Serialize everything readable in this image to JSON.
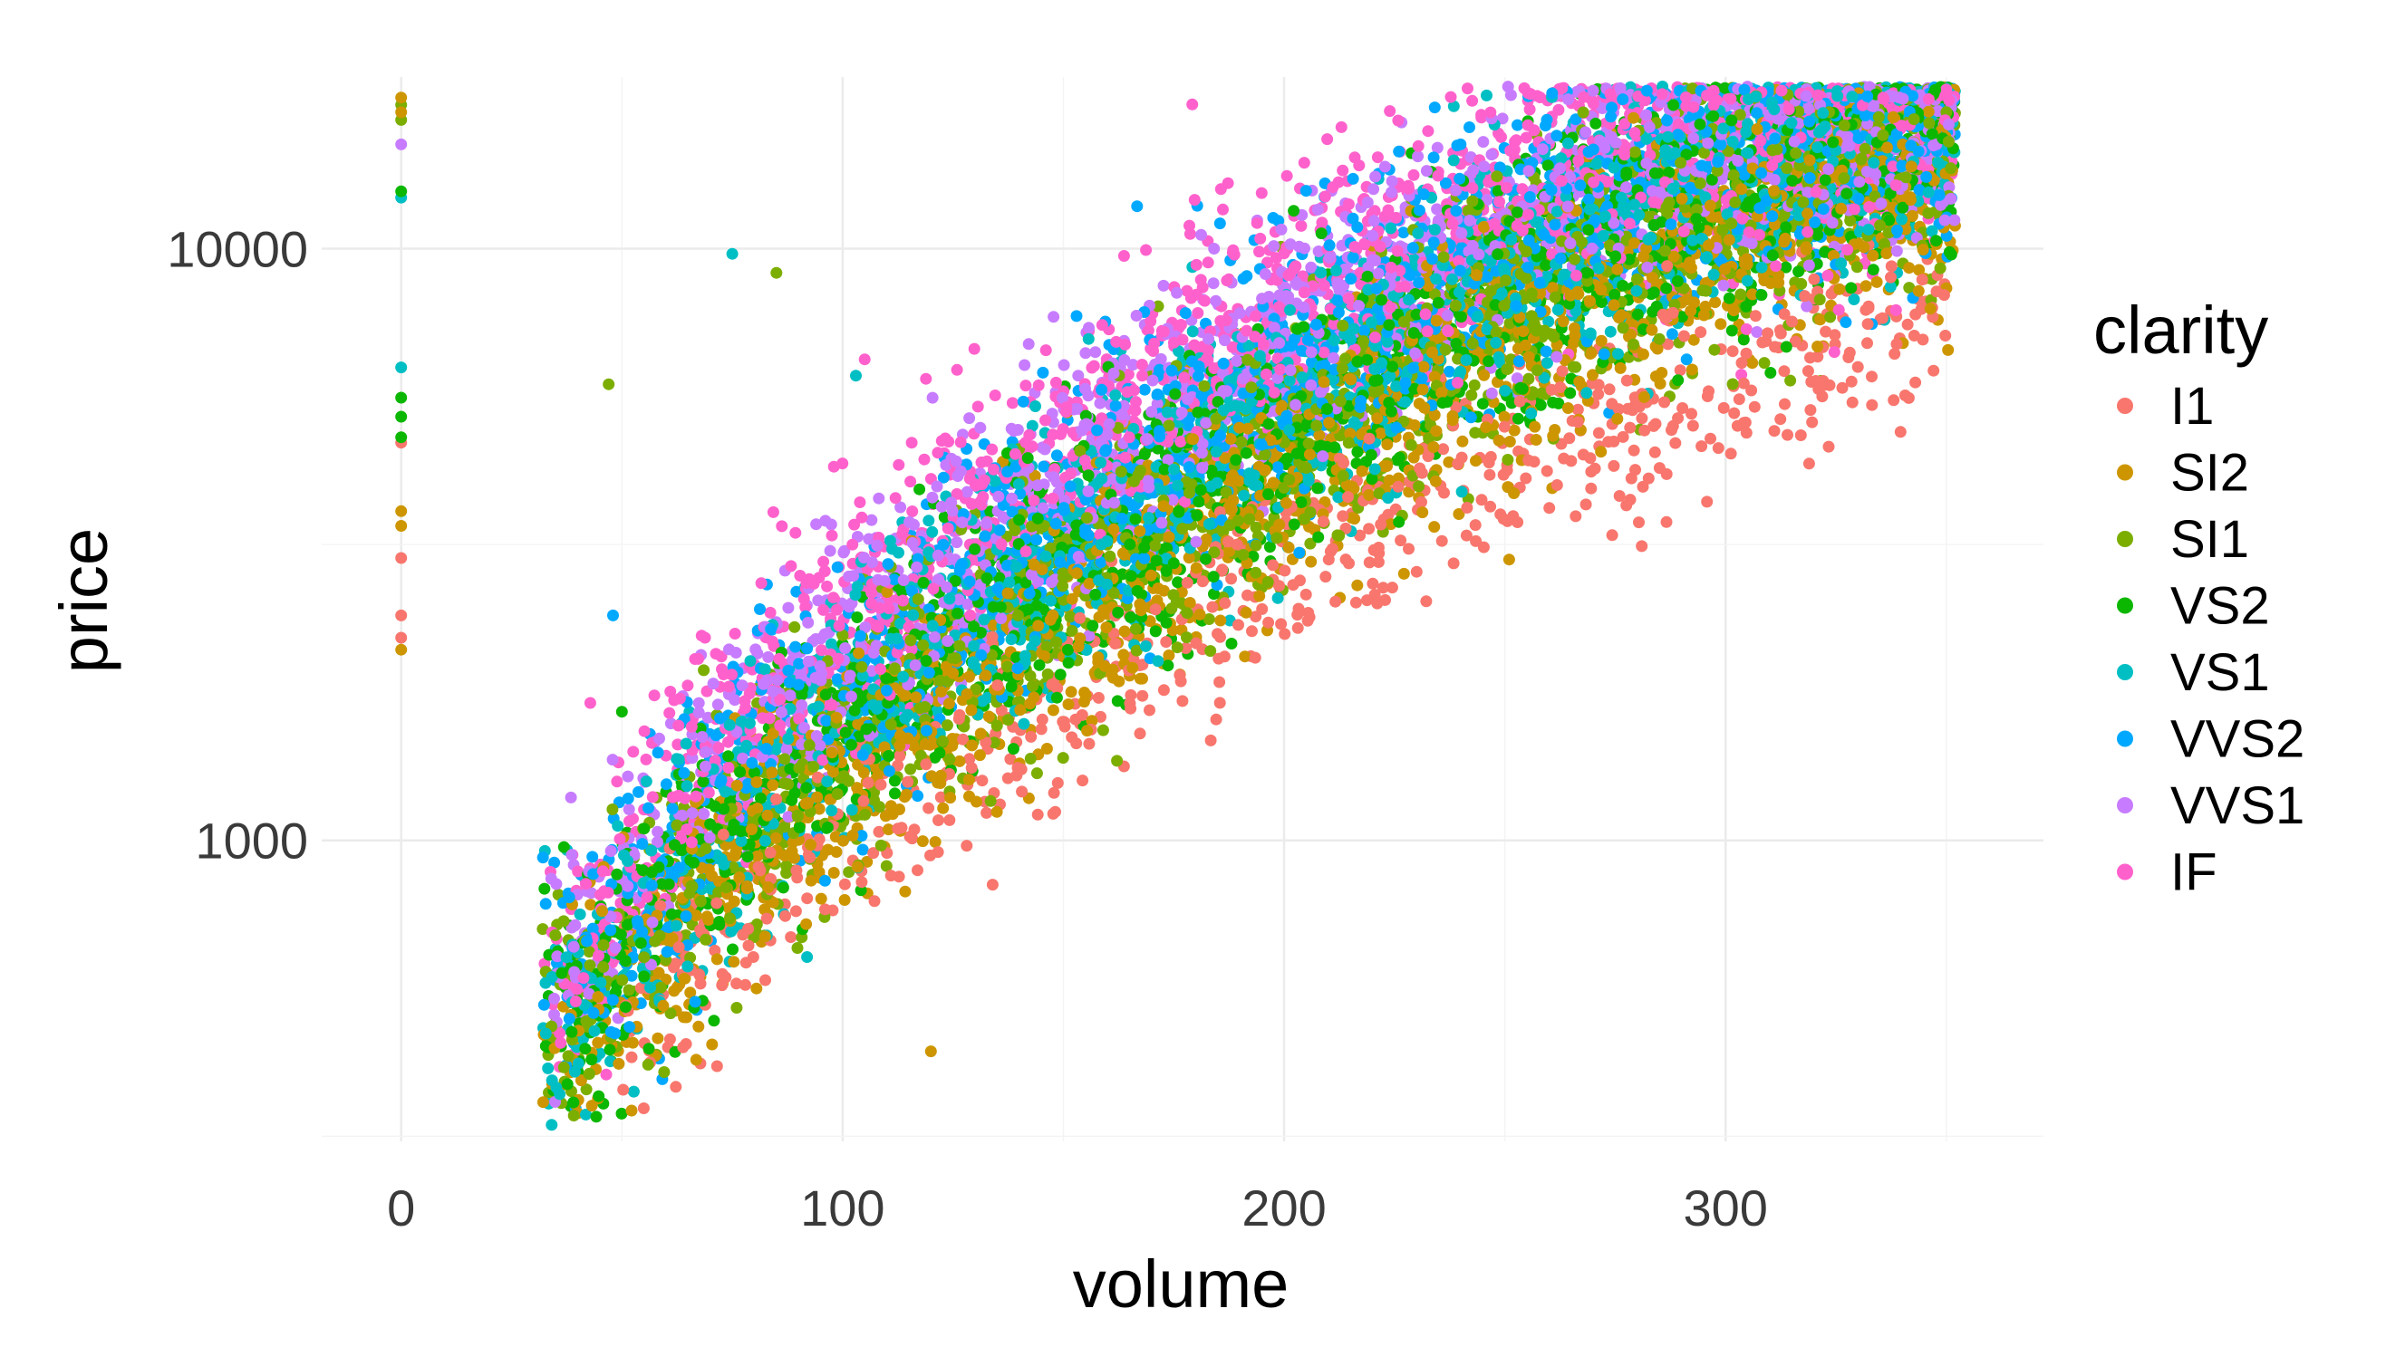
{
  "chart_data": {
    "type": "scatter",
    "xlabel": "volume",
    "ylabel": "price",
    "x_ticks": [
      0,
      100,
      200,
      300
    ],
    "y_ticks": [
      1000,
      10000
    ],
    "y_scale": "log10",
    "xlim": [
      -18,
      372
    ],
    "ylim": [
      310,
      19500
    ],
    "grid": true,
    "legend": {
      "title": "clarity",
      "position": "right"
    },
    "series": [
      {
        "name": "I1",
        "color": "#F8766D",
        "trend": {
          "x": [
            40,
            80,
            120,
            160,
            200,
            240,
            280,
            320,
            350
          ],
          "y": [
            420,
            800,
            1250,
            1900,
            2900,
            3900,
            5200,
            6500,
            7500
          ]
        },
        "zero_volume": [
          2200,
          2400,
          3000,
          4700
        ]
      },
      {
        "name": "SI2",
        "color": "#CD9600",
        "trend": {
          "x": [
            40,
            80,
            120,
            160,
            200,
            240,
            280,
            320,
            350
          ],
          "y": [
            460,
            1000,
            1650,
            2600,
            4200,
            6500,
            9000,
            12000,
            13500
          ]
        },
        "zero_volume": [
          2100,
          3400,
          3600,
          17000,
          18000
        ]
      },
      {
        "name": "SI1",
        "color": "#7CAE00",
        "trend": {
          "x": [
            40,
            80,
            120,
            160,
            200,
            240,
            280,
            320,
            350
          ],
          "y": [
            500,
            1100,
            1900,
            2900,
            4600,
            7200,
            10000,
            13500,
            14800
          ]
        },
        "zero_volume": [
          16500,
          17500
        ]
      },
      {
        "name": "VS2",
        "color": "#0CB702",
        "trend": {
          "x": [
            40,
            80,
            120,
            160,
            200,
            240,
            280,
            320,
            350
          ],
          "y": [
            520,
            1200,
            2000,
            3200,
            5000,
            7800,
            11000,
            14000,
            15200
          ]
        },
        "zero_volume": [
          4800,
          5200,
          5600,
          12500
        ]
      },
      {
        "name": "VS1",
        "color": "#00BFC4",
        "trend": {
          "x": [
            40,
            80,
            120,
            160,
            200,
            240,
            280,
            320,
            350
          ],
          "y": [
            560,
            1300,
            2200,
            3500,
            5500,
            8400,
            11800,
            14800,
            15800
          ]
        },
        "zero_volume": [
          6300,
          12200
        ]
      },
      {
        "name": "VVS2",
        "color": "#00A9FF",
        "trend": {
          "x": [
            40,
            80,
            120,
            160,
            200,
            240,
            280,
            320,
            350
          ],
          "y": [
            600,
            1450,
            2450,
            4000,
            6200,
            9200,
            12800,
            15500,
            16200
          ]
        },
        "zero_volume": []
      },
      {
        "name": "VVS1",
        "color": "#C77CFF",
        "trend": {
          "x": [
            40,
            80,
            120,
            160,
            200,
            240,
            280,
            320,
            350
          ],
          "y": [
            650,
            1600,
            2700,
            4500,
            7000,
            10200,
            13800,
            16000,
            16600
          ]
        },
        "zero_volume": [
          15000
        ]
      },
      {
        "name": "IF",
        "color": "#FF61CC",
        "trend": {
          "x": [
            40,
            80,
            120,
            160,
            200,
            240,
            280,
            320,
            350
          ],
          "y": [
            700,
            1800,
            3000,
            5000,
            8000,
            11500,
            15000,
            16500,
            17000
          ]
        },
        "zero_volume": []
      }
    ],
    "outliers": [
      {
        "x": 75,
        "y": 9800,
        "series": "VS1"
      },
      {
        "x": 85,
        "y": 9100,
        "series": "SI1"
      },
      {
        "x": 47,
        "y": 5900,
        "series": "SI1"
      },
      {
        "x": 48,
        "y": 2400,
        "series": "VVS2"
      },
      {
        "x": 50,
        "y": 1650,
        "series": "VS2"
      },
      {
        "x": 120,
        "y": 440,
        "series": "SI2"
      },
      {
        "x": 103,
        "y": 6100,
        "series": "VS1"
      },
      {
        "x": 105,
        "y": 6500,
        "series": "IF"
      }
    ]
  }
}
